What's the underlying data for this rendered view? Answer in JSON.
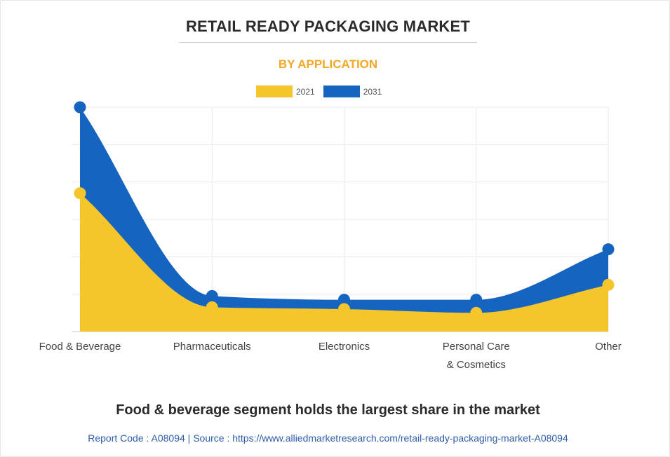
{
  "chart_data": {
    "type": "area",
    "title": "RETAIL READY PACKAGING MARKET",
    "subtitle": "BY APPLICATION",
    "categories": [
      "Food & Beverage",
      "Pharmaceuticals",
      "Electronics",
      "Personal Care & Cosmetics",
      "Other"
    ],
    "category_lines": [
      [
        "Food & Beverage"
      ],
      [
        "Pharmaceuticals"
      ],
      [
        "Electronics"
      ],
      [
        "Personal Care",
        "& Cosmetics"
      ],
      [
        "Other"
      ]
    ],
    "series": [
      {
        "name": "2021",
        "color": "#f5c52c",
        "values": [
          37,
          6.5,
          6,
          5,
          12.5
        ]
      },
      {
        "name": "2031",
        "color": "#1565c0",
        "values": [
          60,
          9.5,
          8.5,
          8.5,
          22
        ]
      }
    ],
    "ylim": [
      0,
      60
    ],
    "grid": true,
    "legend": "top-center",
    "xlabel": "",
    "ylabel": ""
  },
  "footer": {
    "headline": "Food & beverage segment holds the largest share in the market",
    "source": "Report Code : A08094  |  Source : https://www.alliedmarketresearch.com/retail-ready-packaging-market-A08094"
  }
}
